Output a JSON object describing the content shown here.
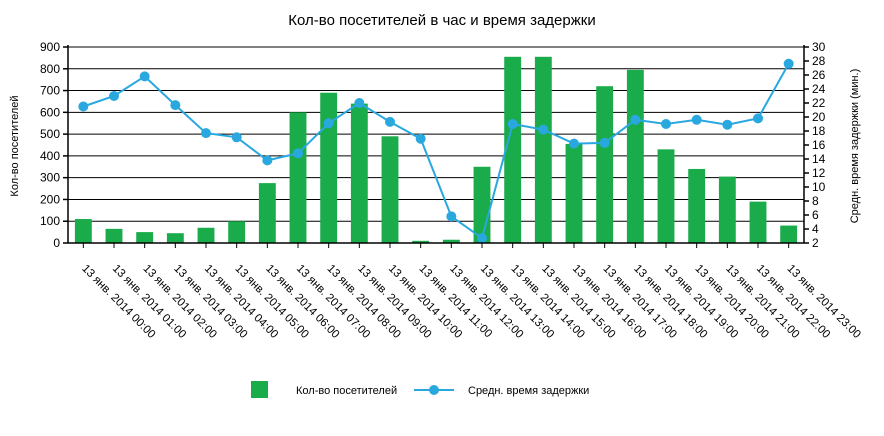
{
  "chart_data": {
    "type": "bar",
    "title": "Кол-во посетителей в час и время задержки",
    "ylabel": "Кол-во посетителей",
    "y2label": "Средн. время задержки (мин.)",
    "xlabel": "",
    "ylim": [
      0,
      900
    ],
    "y2lim": [
      2,
      30
    ],
    "yticks": [
      0,
      100,
      200,
      300,
      400,
      500,
      600,
      700,
      800,
      900
    ],
    "y2ticks": [
      2,
      4,
      6,
      8,
      10,
      12,
      14,
      16,
      18,
      20,
      22,
      24,
      26,
      28,
      30
    ],
    "grid": "horizontal",
    "legend_position": "bottom",
    "categories": [
      "13 янв. 2014 00:00",
      "13 янв. 2014 01:00",
      "13 янв. 2014 02:00",
      "13 янв. 2014 03:00",
      "13 янв. 2014 04:00",
      "13 янв. 2014 05:00",
      "13 янв. 2014 06:00",
      "13 янв. 2014 07:00",
      "13 янв. 2014 08:00",
      "13 янв. 2014 09:00",
      "13 янв. 2014 10:00",
      "13 янв. 2014 11:00",
      "13 янв. 2014 12:00",
      "13 янв. 2014 13:00",
      "13 янв. 2014 14:00",
      "13 янв. 2014 15:00",
      "13 янв. 2014 16:00",
      "13 янв. 2014 17:00",
      "13 янв. 2014 18:00",
      "13 янв. 2014 19:00",
      "13 янв. 2014 20:00",
      "13 янв. 2014 21:00",
      "13 янв. 2014 22:00",
      "13 янв. 2014 23:00"
    ],
    "series": [
      {
        "name": "Кол-во посетителей",
        "type": "bar",
        "axis": "left",
        "color": "#1aab4a",
        "values": [
          110,
          65,
          50,
          45,
          70,
          100,
          275,
          600,
          690,
          640,
          490,
          10,
          15,
          350,
          855,
          855,
          455,
          720,
          795,
          430,
          340,
          305,
          190,
          80
        ]
      },
      {
        "name": "Средн. время задержки",
        "type": "line",
        "axis": "right",
        "color": "#29a8e0",
        "values": [
          21.5,
          23,
          25.8,
          21.7,
          17.7,
          17.1,
          13.8,
          14.8,
          19.1,
          22,
          19.3,
          16.9,
          5.8,
          2.7,
          19,
          18.2,
          16.2,
          16.3,
          19.6,
          19,
          19.6,
          18.9,
          19.8,
          27.6
        ]
      }
    ]
  }
}
